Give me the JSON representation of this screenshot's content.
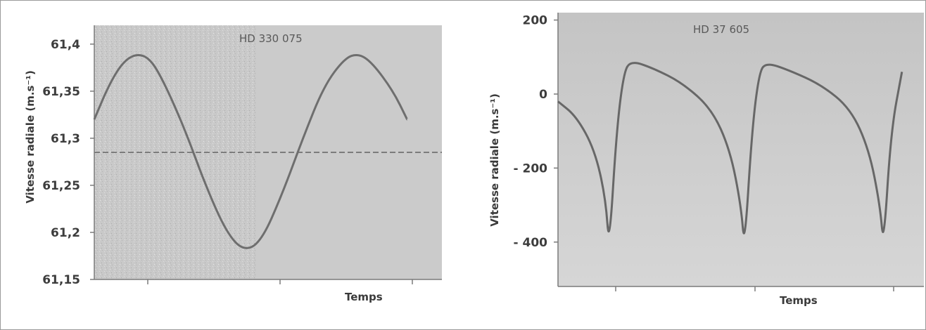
{
  "chart_data": [
    {
      "type": "line",
      "title": "HD 330 075",
      "xlabel": "Temps",
      "ylabel": "Vitesse radiale (m.s⁻¹)",
      "ylim": [
        61.15,
        61.42
      ],
      "yticks": [
        "61,4",
        "61,35",
        "61,3",
        "61,25",
        "61,2",
        "61,15"
      ],
      "yticks_values": [
        61.4,
        61.35,
        61.3,
        61.25,
        61.2,
        61.15
      ],
      "series": [
        {
          "values_description_omitted": true,
          "curve": "sinusoidal",
          "points": [
            [
              0.0,
              61.32
            ],
            [
              0.04,
              61.355
            ],
            [
              0.08,
              61.38
            ],
            [
              0.12,
              61.39
            ],
            [
              0.16,
              61.385
            ],
            [
              0.2,
              61.36
            ],
            [
              0.26,
              61.31
            ],
            [
              0.32,
              61.25
            ],
            [
              0.38,
              61.2
            ],
            [
              0.43,
              61.18
            ],
            [
              0.48,
              61.19
            ],
            [
              0.54,
              61.24
            ],
            [
              0.6,
              61.3
            ],
            [
              0.66,
              61.355
            ],
            [
              0.72,
              61.385
            ],
            [
              0.76,
              61.39
            ],
            [
              0.8,
              61.38
            ],
            [
              0.86,
              61.35
            ],
            [
              0.9,
              61.32
            ]
          ]
        }
      ],
      "reference_line": 61.285,
      "grid": false
    },
    {
      "type": "line",
      "title": "HD 37 605",
      "xlabel": "Temps",
      "ylabel": "Vitesse radiale (m.s⁻¹)",
      "ylim": [
        -520,
        220
      ],
      "yticks": [
        "200",
        "0",
        "- 200",
        "- 400"
      ],
      "yticks_values": [
        200,
        0,
        -200,
        -400
      ],
      "series": [
        {
          "curve": "eccentric-orbit",
          "points": [
            [
              0.0,
              -20
            ],
            [
              0.05,
              -60
            ],
            [
              0.1,
              -150
            ],
            [
              0.13,
              -280
            ],
            [
              0.14,
              -420
            ],
            [
              0.16,
              -100
            ],
            [
              0.18,
              60
            ],
            [
              0.2,
              90
            ],
            [
              0.26,
              70
            ],
            [
              0.34,
              30
            ],
            [
              0.42,
              -40
            ],
            [
              0.47,
              -150
            ],
            [
              0.5,
              -300
            ],
            [
              0.51,
              -420
            ],
            [
              0.53,
              -100
            ],
            [
              0.55,
              60
            ],
            [
              0.57,
              85
            ],
            [
              0.63,
              65
            ],
            [
              0.72,
              25
            ],
            [
              0.8,
              -40
            ],
            [
              0.85,
              -150
            ],
            [
              0.88,
              -300
            ],
            [
              0.89,
              -415
            ],
            [
              0.91,
              -100
            ],
            [
              0.94,
              60
            ]
          ]
        }
      ],
      "grid": false
    }
  ]
}
